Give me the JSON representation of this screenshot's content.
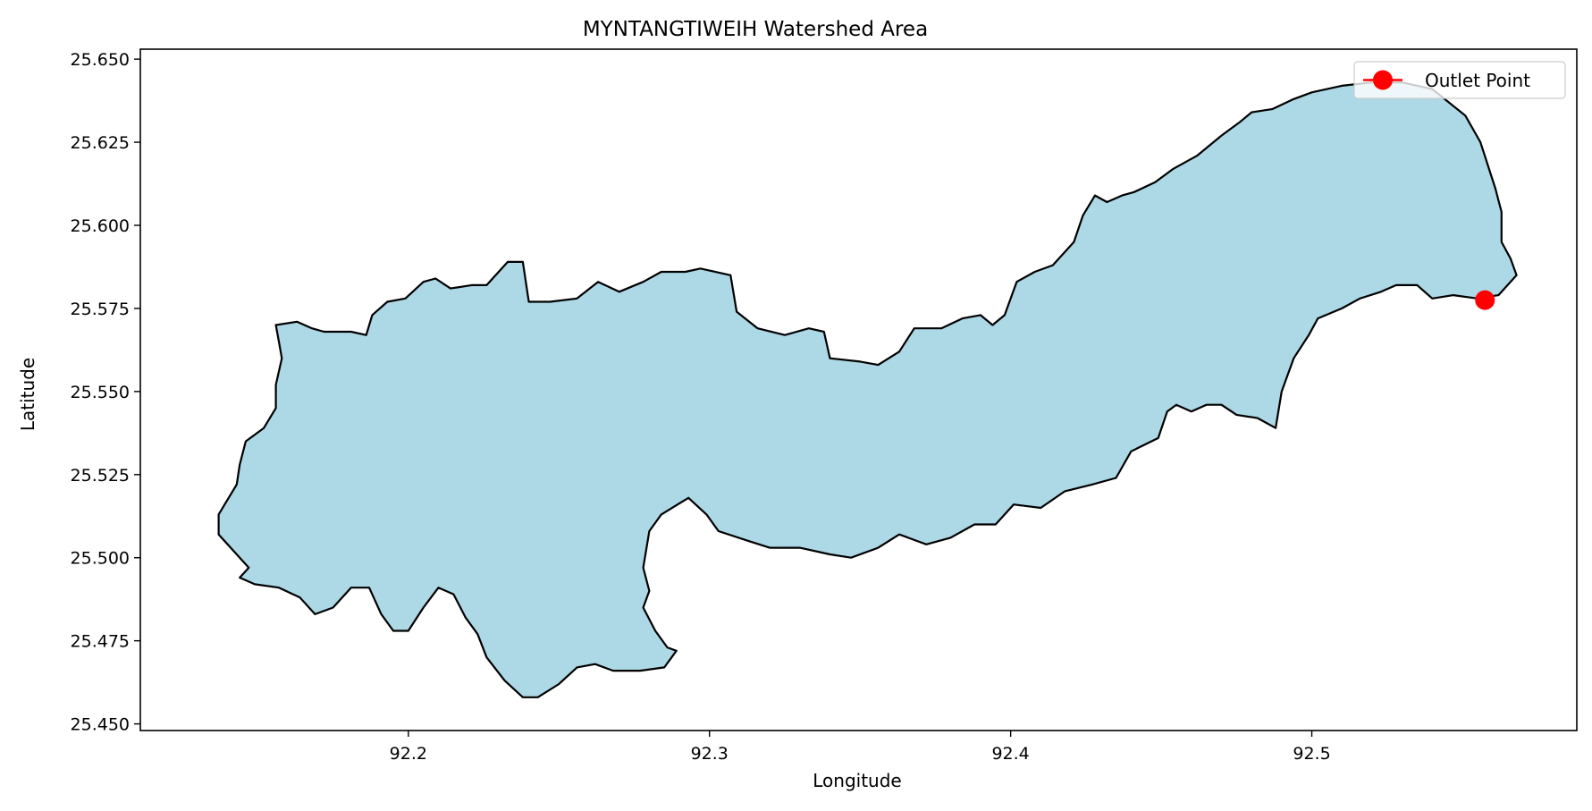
{
  "chart_data": {
    "type": "map",
    "title": "MYNTANGTIWEIH Watershed Area",
    "xlabel": "Longitude",
    "ylabel": "Latitude",
    "xlim": [
      92.111,
      92.588
    ],
    "ylim": [
      25.448,
      25.653
    ],
    "grid": false,
    "x_ticks": [
      92.2,
      92.3,
      92.4,
      92.5
    ],
    "x_tick_labels": [
      "92.2",
      "92.3",
      "92.4",
      "92.5"
    ],
    "y_ticks": [
      25.45,
      25.475,
      25.5,
      25.525,
      25.55,
      25.575,
      25.6,
      25.625,
      25.65
    ],
    "y_tick_labels": [
      "25.450",
      "25.475",
      "25.500",
      "25.525",
      "25.550",
      "25.575",
      "25.600",
      "25.625",
      "25.650"
    ],
    "watershed": {
      "fill_color": "#add8e6",
      "edge_color": "#000000",
      "boundary": [
        [
          92.156,
          25.57
        ],
        [
          92.163,
          25.571
        ],
        [
          92.168,
          25.569
        ],
        [
          92.172,
          25.568
        ],
        [
          92.181,
          25.568
        ],
        [
          92.186,
          25.567
        ],
        [
          92.188,
          25.573
        ],
        [
          92.193,
          25.577
        ],
        [
          92.199,
          25.578
        ],
        [
          92.205,
          25.583
        ],
        [
          92.209,
          25.584
        ],
        [
          92.214,
          25.581
        ],
        [
          92.221,
          25.582
        ],
        [
          92.226,
          25.582
        ],
        [
          92.233,
          25.589
        ],
        [
          92.238,
          25.589
        ],
        [
          92.24,
          25.577
        ],
        [
          92.247,
          25.577
        ],
        [
          92.256,
          25.578
        ],
        [
          92.263,
          25.583
        ],
        [
          92.27,
          25.58
        ],
        [
          92.278,
          25.583
        ],
        [
          92.284,
          25.586
        ],
        [
          92.292,
          25.586
        ],
        [
          92.297,
          25.587
        ],
        [
          92.307,
          25.585
        ],
        [
          92.309,
          25.574
        ],
        [
          92.316,
          25.569
        ],
        [
          92.325,
          25.567
        ],
        [
          92.333,
          25.569
        ],
        [
          92.338,
          25.568
        ],
        [
          92.34,
          25.56
        ],
        [
          92.35,
          25.559
        ],
        [
          92.356,
          25.558
        ],
        [
          92.363,
          25.562
        ],
        [
          92.368,
          25.569
        ],
        [
          92.377,
          25.569
        ],
        [
          92.384,
          25.572
        ],
        [
          92.39,
          25.573
        ],
        [
          92.394,
          25.57
        ],
        [
          92.398,
          25.573
        ],
        [
          92.402,
          25.583
        ],
        [
          92.408,
          25.586
        ],
        [
          92.414,
          25.588
        ],
        [
          92.421,
          25.595
        ],
        [
          92.424,
          25.603
        ],
        [
          92.428,
          25.609
        ],
        [
          92.432,
          25.607
        ],
        [
          92.437,
          25.609
        ],
        [
          92.441,
          25.61
        ],
        [
          92.448,
          25.613
        ],
        [
          92.454,
          25.617
        ],
        [
          92.462,
          25.621
        ],
        [
          92.47,
          25.627
        ],
        [
          92.476,
          25.631
        ],
        [
          92.48,
          25.634
        ],
        [
          92.487,
          25.635
        ],
        [
          92.494,
          25.638
        ],
        [
          92.5,
          25.64
        ],
        [
          92.51,
          25.642
        ],
        [
          92.52,
          25.643
        ],
        [
          92.53,
          25.643
        ],
        [
          92.54,
          25.641
        ],
        [
          92.551,
          25.633
        ],
        [
          92.556,
          25.625
        ],
        [
          92.561,
          25.611
        ],
        [
          92.563,
          25.604
        ],
        [
          92.563,
          25.595
        ],
        [
          92.566,
          25.59
        ],
        [
          92.568,
          25.585
        ],
        [
          92.562,
          25.579
        ],
        [
          92.555,
          25.578
        ],
        [
          92.547,
          25.579
        ],
        [
          92.54,
          25.578
        ],
        [
          92.535,
          25.582
        ],
        [
          92.528,
          25.582
        ],
        [
          92.523,
          25.58
        ],
        [
          92.516,
          25.578
        ],
        [
          92.51,
          25.575
        ],
        [
          92.502,
          25.572
        ],
        [
          92.499,
          25.567
        ],
        [
          92.494,
          25.56
        ],
        [
          92.49,
          25.55
        ],
        [
          92.488,
          25.539
        ],
        [
          92.482,
          25.542
        ],
        [
          92.475,
          25.543
        ],
        [
          92.47,
          25.546
        ],
        [
          92.465,
          25.546
        ],
        [
          92.46,
          25.544
        ],
        [
          92.455,
          25.546
        ],
        [
          92.452,
          25.544
        ],
        [
          92.449,
          25.536
        ],
        [
          92.44,
          25.532
        ],
        [
          92.435,
          25.524
        ],
        [
          92.427,
          25.522
        ],
        [
          92.418,
          25.52
        ],
        [
          92.41,
          25.515
        ],
        [
          92.401,
          25.516
        ],
        [
          92.395,
          25.51
        ],
        [
          92.388,
          25.51
        ],
        [
          92.38,
          25.506
        ],
        [
          92.372,
          25.504
        ],
        [
          92.363,
          25.507
        ],
        [
          92.356,
          25.503
        ],
        [
          92.347,
          25.5
        ],
        [
          92.34,
          25.501
        ],
        [
          92.33,
          25.503
        ],
        [
          92.32,
          25.503
        ],
        [
          92.313,
          25.505
        ],
        [
          92.303,
          25.508
        ],
        [
          92.299,
          25.513
        ],
        [
          92.293,
          25.518
        ],
        [
          92.284,
          25.513
        ],
        [
          92.28,
          25.508
        ],
        [
          92.278,
          25.497
        ],
        [
          92.28,
          25.49
        ],
        [
          92.278,
          25.485
        ],
        [
          92.282,
          25.478
        ],
        [
          92.286,
          25.473
        ],
        [
          92.289,
          25.472
        ],
        [
          92.285,
          25.467
        ],
        [
          92.277,
          25.466
        ],
        [
          92.268,
          25.466
        ],
        [
          92.262,
          25.468
        ],
        [
          92.256,
          25.467
        ],
        [
          92.25,
          25.462
        ],
        [
          92.243,
          25.458
        ],
        [
          92.238,
          25.458
        ],
        [
          92.232,
          25.463
        ],
        [
          92.226,
          25.47
        ],
        [
          92.223,
          25.477
        ],
        [
          92.219,
          25.482
        ],
        [
          92.215,
          25.489
        ],
        [
          92.21,
          25.491
        ],
        [
          92.205,
          25.485
        ],
        [
          92.2,
          25.478
        ],
        [
          92.195,
          25.478
        ],
        [
          92.191,
          25.483
        ],
        [
          92.187,
          25.491
        ],
        [
          92.181,
          25.491
        ],
        [
          92.175,
          25.485
        ],
        [
          92.169,
          25.483
        ],
        [
          92.164,
          25.488
        ],
        [
          92.157,
          25.491
        ],
        [
          92.149,
          25.492
        ],
        [
          92.144,
          25.494
        ],
        [
          92.147,
          25.497
        ],
        [
          92.141,
          25.503
        ],
        [
          92.137,
          25.507
        ],
        [
          92.137,
          25.513
        ],
        [
          92.139,
          25.516
        ],
        [
          92.143,
          25.522
        ],
        [
          92.144,
          25.528
        ],
        [
          92.146,
          25.535
        ],
        [
          92.152,
          25.539
        ],
        [
          92.156,
          25.545
        ],
        [
          92.156,
          25.552
        ],
        [
          92.158,
          25.56
        ],
        [
          92.157,
          25.565
        ]
      ]
    },
    "outlet": {
      "label": "Outlet Point",
      "lon": 92.5575,
      "lat": 25.5775,
      "color": "#ff0000"
    },
    "legend": {
      "position": "top-right",
      "entries": [
        "Outlet Point"
      ]
    }
  }
}
